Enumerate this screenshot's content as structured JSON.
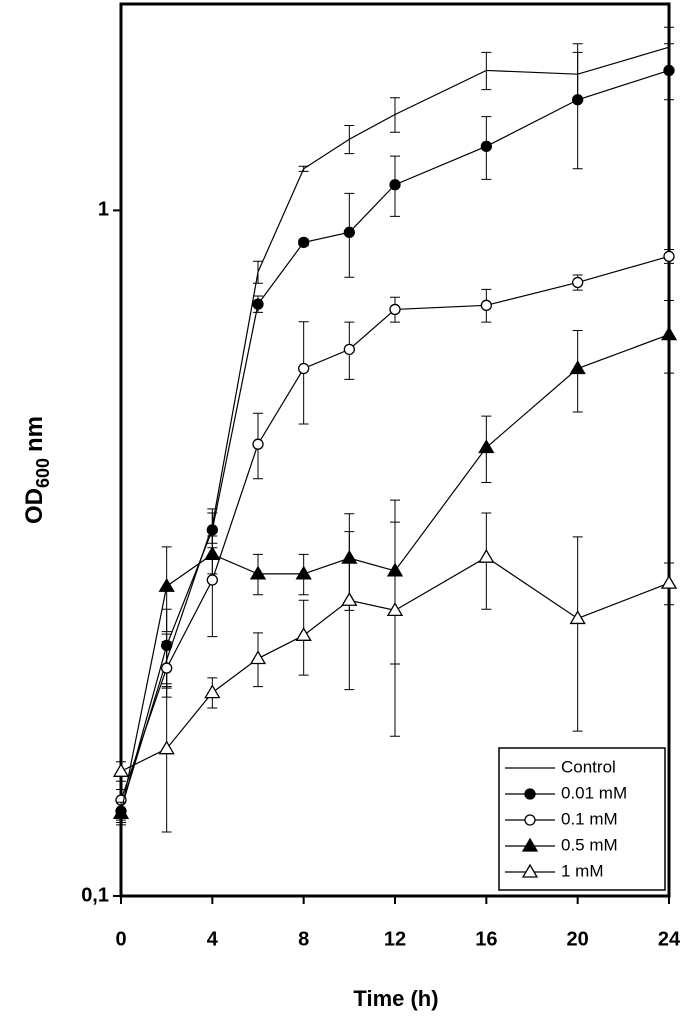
{
  "chart_data": {
    "type": "line",
    "xlabel": "Time (h)",
    "ylabel": {
      "main": "OD",
      "subscript": "600",
      "unit": "nm"
    },
    "x": [
      0,
      2,
      4,
      6,
      8,
      10,
      12,
      16,
      20,
      24
    ],
    "xlim": [
      0,
      24
    ],
    "xticks": [
      0,
      4,
      8,
      12,
      16,
      20,
      24
    ],
    "ylim": [
      0.1,
      2
    ],
    "yticks": [
      {
        "value": 0.1,
        "label": "0,1"
      },
      1
    ],
    "y_scale": "log",
    "legend": "lower right",
    "series": [
      {
        "name": "Control",
        "color": "#000000",
        "marker": "none",
        "marker_fill": "none",
        "values": [
          0.134,
          0.221,
          0.347,
          0.813,
          1.15,
          1.27,
          1.38,
          1.6,
          1.58,
          1.73
        ],
        "errors": [
          0.005,
          0.02,
          0.02,
          0.03,
          0.01,
          0.06,
          0.08,
          0.1,
          0.12,
          0.12
        ]
      },
      {
        "name": "0.01 mM",
        "color": "#000000",
        "marker": "circle",
        "marker_fill": "filled",
        "values": [
          0.133,
          0.232,
          0.342,
          0.73,
          0.898,
          0.929,
          1.09,
          1.24,
          1.45,
          1.6
        ],
        "errors": [
          0.005,
          0.03,
          0.02,
          0.02,
          0.01,
          0.13,
          0.11,
          0.13,
          0.3,
          0.15
        ]
      },
      {
        "name": "0.1 mM",
        "color": "#000000",
        "marker": "circle",
        "marker_fill": "open",
        "values": [
          0.138,
          0.215,
          0.289,
          0.456,
          0.588,
          0.627,
          0.717,
          0.727,
          0.785,
          0.857
        ],
        "errors": [
          0.005,
          0.02,
          0.05,
          0.05,
          0.1,
          0.06,
          0.03,
          0.04,
          0.02,
          0.02
        ]
      },
      {
        "name": "0.5 mM",
        "color": "#000000",
        "marker": "triangle",
        "marker_fill": "filled",
        "values": [
          0.132,
          0.283,
          0.315,
          0.295,
          0.295,
          0.311,
          0.298,
          0.451,
          0.588,
          0.659
        ],
        "errors": [
          0.005,
          0.04,
          0.02,
          0.02,
          0.02,
          0.05,
          0.08,
          0.05,
          0.08,
          0.08
        ]
      },
      {
        "name": "1 mM",
        "color": "#000000",
        "marker": "triangle",
        "marker_fill": "open",
        "values": [
          0.152,
          0.164,
          0.198,
          0.222,
          0.24,
          0.27,
          0.261,
          0.312,
          0.254,
          0.286
        ],
        "errors": [
          0.005,
          0.04,
          0.01,
          0.02,
          0.03,
          0.07,
          0.09,
          0.05,
          0.08,
          0.02
        ]
      }
    ]
  }
}
